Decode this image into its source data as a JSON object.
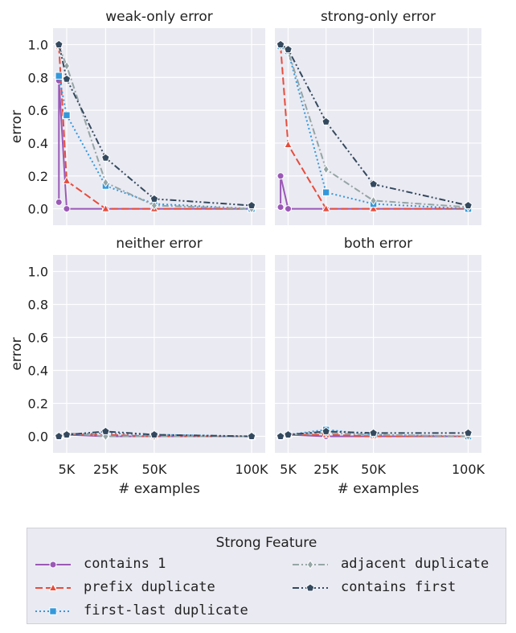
{
  "chart_data": {
    "type": "line",
    "x_ticks": [
      5000,
      25000,
      50000,
      100000
    ],
    "x_tick_labels": [
      "5K",
      "25K",
      "50K",
      "100K"
    ],
    "y_ticks": [
      0.0,
      0.2,
      0.4,
      0.6,
      0.8,
      1.0
    ],
    "y_tick_labels": [
      "0.0",
      "0.2",
      "0.4",
      "0.6",
      "0.8",
      "1.0"
    ],
    "xlim": [
      -2000,
      107000
    ],
    "ylim": [
      -0.1,
      1.1
    ],
    "xlabel": "# examples",
    "ylabel": "error",
    "grid": true,
    "legend": {
      "title": "Strong Feature",
      "placement": "bottom",
      "entries": [
        "contains 1",
        "prefix duplicate",
        "first-last duplicate",
        "adjacent duplicate",
        "contains first"
      ]
    },
    "series_styles": [
      {
        "name": "contains 1",
        "color": "#9b59b6",
        "marker": "circle",
        "dash": ""
      },
      {
        "name": "prefix duplicate",
        "color": "#e74c3c",
        "marker": "triangle",
        "dash": "9,4"
      },
      {
        "name": "first-last duplicate",
        "color": "#3498db",
        "marker": "square",
        "dash": "2,3"
      },
      {
        "name": "adjacent duplicate",
        "color": "#95a5a6",
        "marker": "diamond",
        "dash": "8,3,2,3"
      },
      {
        "name": "contains first",
        "color": "#34495e",
        "marker": "pentagon",
        "dash": "8,3,2,3,2,3"
      }
    ],
    "panels": [
      {
        "title": "weak-only error",
        "series": [
          {
            "name": "contains 1",
            "x": [
              1000,
              1000,
              5000,
              25000,
              50000,
              100000
            ],
            "y": [
              0.04,
              0.78,
              0.0,
              0.0,
              0.0,
              0.0
            ]
          },
          {
            "name": "prefix duplicate",
            "x": [
              1000,
              5000,
              25000,
              50000,
              100000
            ],
            "y": [
              0.99,
              0.17,
              0.0,
              0.0,
              0.0
            ]
          },
          {
            "name": "first-last duplicate",
            "x": [
              1000,
              5000,
              25000,
              50000,
              100000
            ],
            "y": [
              0.81,
              0.57,
              0.14,
              0.03,
              0.0
            ]
          },
          {
            "name": "adjacent duplicate",
            "x": [
              1000,
              5000,
              25000,
              50000,
              100000
            ],
            "y": [
              0.99,
              0.87,
              0.16,
              0.02,
              0.0
            ]
          },
          {
            "name": "contains first",
            "x": [
              1000,
              5000,
              25000,
              50000,
              100000
            ],
            "y": [
              1.0,
              0.79,
              0.31,
              0.06,
              0.02
            ]
          }
        ]
      },
      {
        "title": "strong-only error",
        "series": [
          {
            "name": "contains 1",
            "x": [
              1000,
              1000,
              5000,
              25000,
              50000,
              100000
            ],
            "y": [
              0.01,
              0.2,
              0.0,
              0.0,
              0.0,
              0.0
            ]
          },
          {
            "name": "prefix duplicate",
            "x": [
              1000,
              5000,
              25000,
              50000,
              100000
            ],
            "y": [
              0.99,
              0.39,
              0.0,
              0.0,
              0.0
            ]
          },
          {
            "name": "first-last duplicate",
            "x": [
              1000,
              5000,
              25000,
              50000,
              100000
            ],
            "y": [
              0.99,
              0.96,
              0.1,
              0.03,
              0.0
            ]
          },
          {
            "name": "adjacent duplicate",
            "x": [
              1000,
              5000,
              25000,
              50000,
              100000
            ],
            "y": [
              0.99,
              0.96,
              0.24,
              0.05,
              0.01
            ]
          },
          {
            "name": "contains first",
            "x": [
              1000,
              5000,
              25000,
              50000,
              100000
            ],
            "y": [
              1.0,
              0.97,
              0.53,
              0.15,
              0.02
            ]
          }
        ]
      },
      {
        "title": "neither error",
        "series": [
          {
            "name": "contains 1",
            "x": [
              1000,
              5000,
              25000,
              50000,
              100000
            ],
            "y": [
              0.0,
              0.01,
              0.0,
              0.0,
              0.0
            ]
          },
          {
            "name": "prefix duplicate",
            "x": [
              1000,
              5000,
              25000,
              50000,
              100000
            ],
            "y": [
              0.0,
              0.01,
              0.01,
              0.0,
              0.0
            ]
          },
          {
            "name": "first-last duplicate",
            "x": [
              1000,
              5000,
              25000,
              50000,
              100000
            ],
            "y": [
              0.0,
              0.01,
              0.02,
              0.01,
              0.0
            ]
          },
          {
            "name": "adjacent duplicate",
            "x": [
              1000,
              5000,
              25000,
              50000,
              100000
            ],
            "y": [
              0.0,
              0.02,
              0.0,
              0.0,
              0.0
            ]
          },
          {
            "name": "contains first",
            "x": [
              1000,
              5000,
              25000,
              50000,
              100000
            ],
            "y": [
              0.0,
              0.01,
              0.03,
              0.01,
              0.0
            ]
          }
        ]
      },
      {
        "title": "both error",
        "series": [
          {
            "name": "contains 1",
            "x": [
              1000,
              5000,
              25000,
              50000,
              100000
            ],
            "y": [
              0.0,
              0.01,
              0.0,
              0.0,
              0.0
            ]
          },
          {
            "name": "prefix duplicate",
            "x": [
              1000,
              5000,
              25000,
              50000,
              100000
            ],
            "y": [
              0.0,
              0.01,
              0.01,
              0.0,
              0.0
            ]
          },
          {
            "name": "first-last duplicate",
            "x": [
              1000,
              5000,
              25000,
              50000,
              100000
            ],
            "y": [
              0.0,
              0.01,
              0.04,
              0.01,
              0.0
            ]
          },
          {
            "name": "adjacent duplicate",
            "x": [
              1000,
              5000,
              25000,
              50000,
              100000
            ],
            "y": [
              0.0,
              0.01,
              0.02,
              0.01,
              0.0
            ]
          },
          {
            "name": "contains first",
            "x": [
              1000,
              5000,
              25000,
              50000,
              100000
            ],
            "y": [
              0.0,
              0.01,
              0.03,
              0.02,
              0.02
            ]
          }
        ]
      }
    ]
  }
}
